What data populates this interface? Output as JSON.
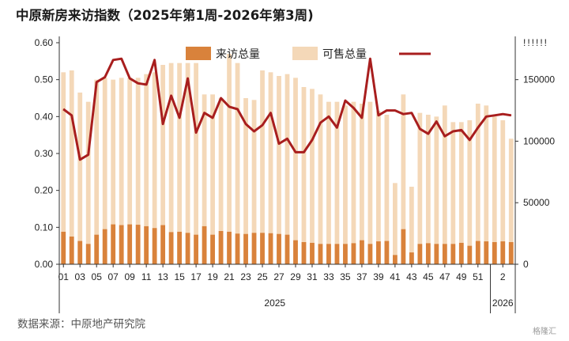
{
  "title": "中原新房来访指数（2025年第1周-2026年第3周)",
  "source": "数据来源：中原地产研究院",
  "watermark": "格隆汇",
  "colors": {
    "visits": "#d9823b",
    "supply": "#f4d8b8",
    "index": "#a81e1e",
    "axis": "#333333"
  },
  "chart_data": {
    "type": "bar",
    "title": "中原新房来访指数（2025年第1周-2026年第3周)",
    "legend": {
      "placement": "top-center",
      "items": [
        "来访总量",
        "可售总量",
        ""
      ]
    },
    "x_tick_labels": [
      "01",
      "03",
      "05",
      "07",
      "09",
      "11",
      "13",
      "15",
      "17",
      "19",
      "21",
      "23",
      "25",
      "27",
      "29",
      "31",
      "33",
      "35",
      "37",
      "39",
      "41",
      "43",
      "45",
      "47",
      "49",
      "51",
      "2"
    ],
    "x_tick_weeks": [
      1,
      3,
      5,
      7,
      9,
      11,
      13,
      15,
      17,
      19,
      21,
      23,
      25,
      27,
      29,
      31,
      33,
      35,
      37,
      39,
      41,
      43,
      45,
      47,
      49,
      51,
      54
    ],
    "x_group_labels": [
      {
        "label": "2025",
        "weeks": [
          1,
          52
        ]
      },
      {
        "label": "2026",
        "weeks": [
          53,
          55
        ]
      }
    ],
    "x": [
      1,
      2,
      3,
      4,
      5,
      6,
      7,
      8,
      9,
      10,
      11,
      12,
      13,
      14,
      15,
      16,
      17,
      18,
      19,
      20,
      21,
      22,
      23,
      24,
      25,
      26,
      27,
      28,
      29,
      30,
      31,
      32,
      33,
      34,
      35,
      36,
      37,
      38,
      39,
      40,
      41,
      42,
      43,
      44,
      45,
      46,
      47,
      48,
      49,
      50,
      51,
      52,
      53,
      54,
      55
    ],
    "y_left": {
      "min": 0,
      "max": 0.6,
      "ticks": [
        "0.00",
        "0.10",
        "0.20",
        "0.30",
        "0.40",
        "0.50",
        "0.60"
      ]
    },
    "y_right": {
      "min": 0,
      "max": 180000,
      "ticks": [
        "0",
        "50000",
        "100000",
        "150000"
      ],
      "top_tick_label": "!!!!!!"
    },
    "series": [
      {
        "name": "来访总量",
        "type": "bar",
        "axis": "left",
        "values": [
          0.088,
          0.075,
          0.063,
          0.055,
          0.08,
          0.095,
          0.108,
          0.106,
          0.108,
          0.107,
          0.103,
          0.098,
          0.106,
          0.087,
          0.088,
          0.085,
          0.08,
          0.103,
          0.08,
          0.09,
          0.088,
          0.083,
          0.082,
          0.085,
          0.085,
          0.084,
          0.082,
          0.08,
          0.065,
          0.06,
          0.058,
          0.055,
          0.055,
          0.055,
          0.055,
          0.057,
          0.065,
          0.055,
          0.062,
          0.063,
          0.025,
          0.095,
          0.032,
          0.055,
          0.057,
          0.055,
          0.055,
          0.055,
          0.058,
          0.05,
          0.063,
          0.062,
          0.06,
          0.062,
          0.06
        ]
      },
      {
        "name": "可售总量",
        "type": "bar",
        "axis": "left",
        "values": [
          0.52,
          0.525,
          0.465,
          0.44,
          0.5,
          0.505,
          0.5,
          0.505,
          0.505,
          0.505,
          0.515,
          0.52,
          0.54,
          0.545,
          0.545,
          0.545,
          0.545,
          0.46,
          0.46,
          0.45,
          0.57,
          0.545,
          0.45,
          0.445,
          0.525,
          0.52,
          0.51,
          0.515,
          0.505,
          0.48,
          0.475,
          0.46,
          0.44,
          0.44,
          0.43,
          0.44,
          0.435,
          0.44,
          0.415,
          0.405,
          0.22,
          0.46,
          0.21,
          0.41,
          0.405,
          0.4,
          0.43,
          0.385,
          0.385,
          0.39,
          0.435,
          0.43,
          0.4,
          0.39,
          0.34
        ]
      },
      {
        "name": "",
        "type": "line",
        "axis": "right",
        "values": [
          126000,
          121000,
          85000,
          89000,
          148000,
          152000,
          166000,
          167000,
          151000,
          147000,
          146000,
          166000,
          114000,
          137000,
          119000,
          151000,
          107000,
          123000,
          119000,
          135000,
          128000,
          126000,
          114000,
          108000,
          113000,
          123000,
          98000,
          102000,
          91000,
          91000,
          101000,
          115000,
          120000,
          111000,
          133000,
          127000,
          119000,
          167000,
          121000,
          125000,
          125000,
          122000,
          123000,
          110000,
          106000,
          116000,
          104000,
          108000,
          109000,
          101000,
          111000,
          120000,
          121000,
          122000,
          121000
        ]
      }
    ],
    "grid": false
  }
}
